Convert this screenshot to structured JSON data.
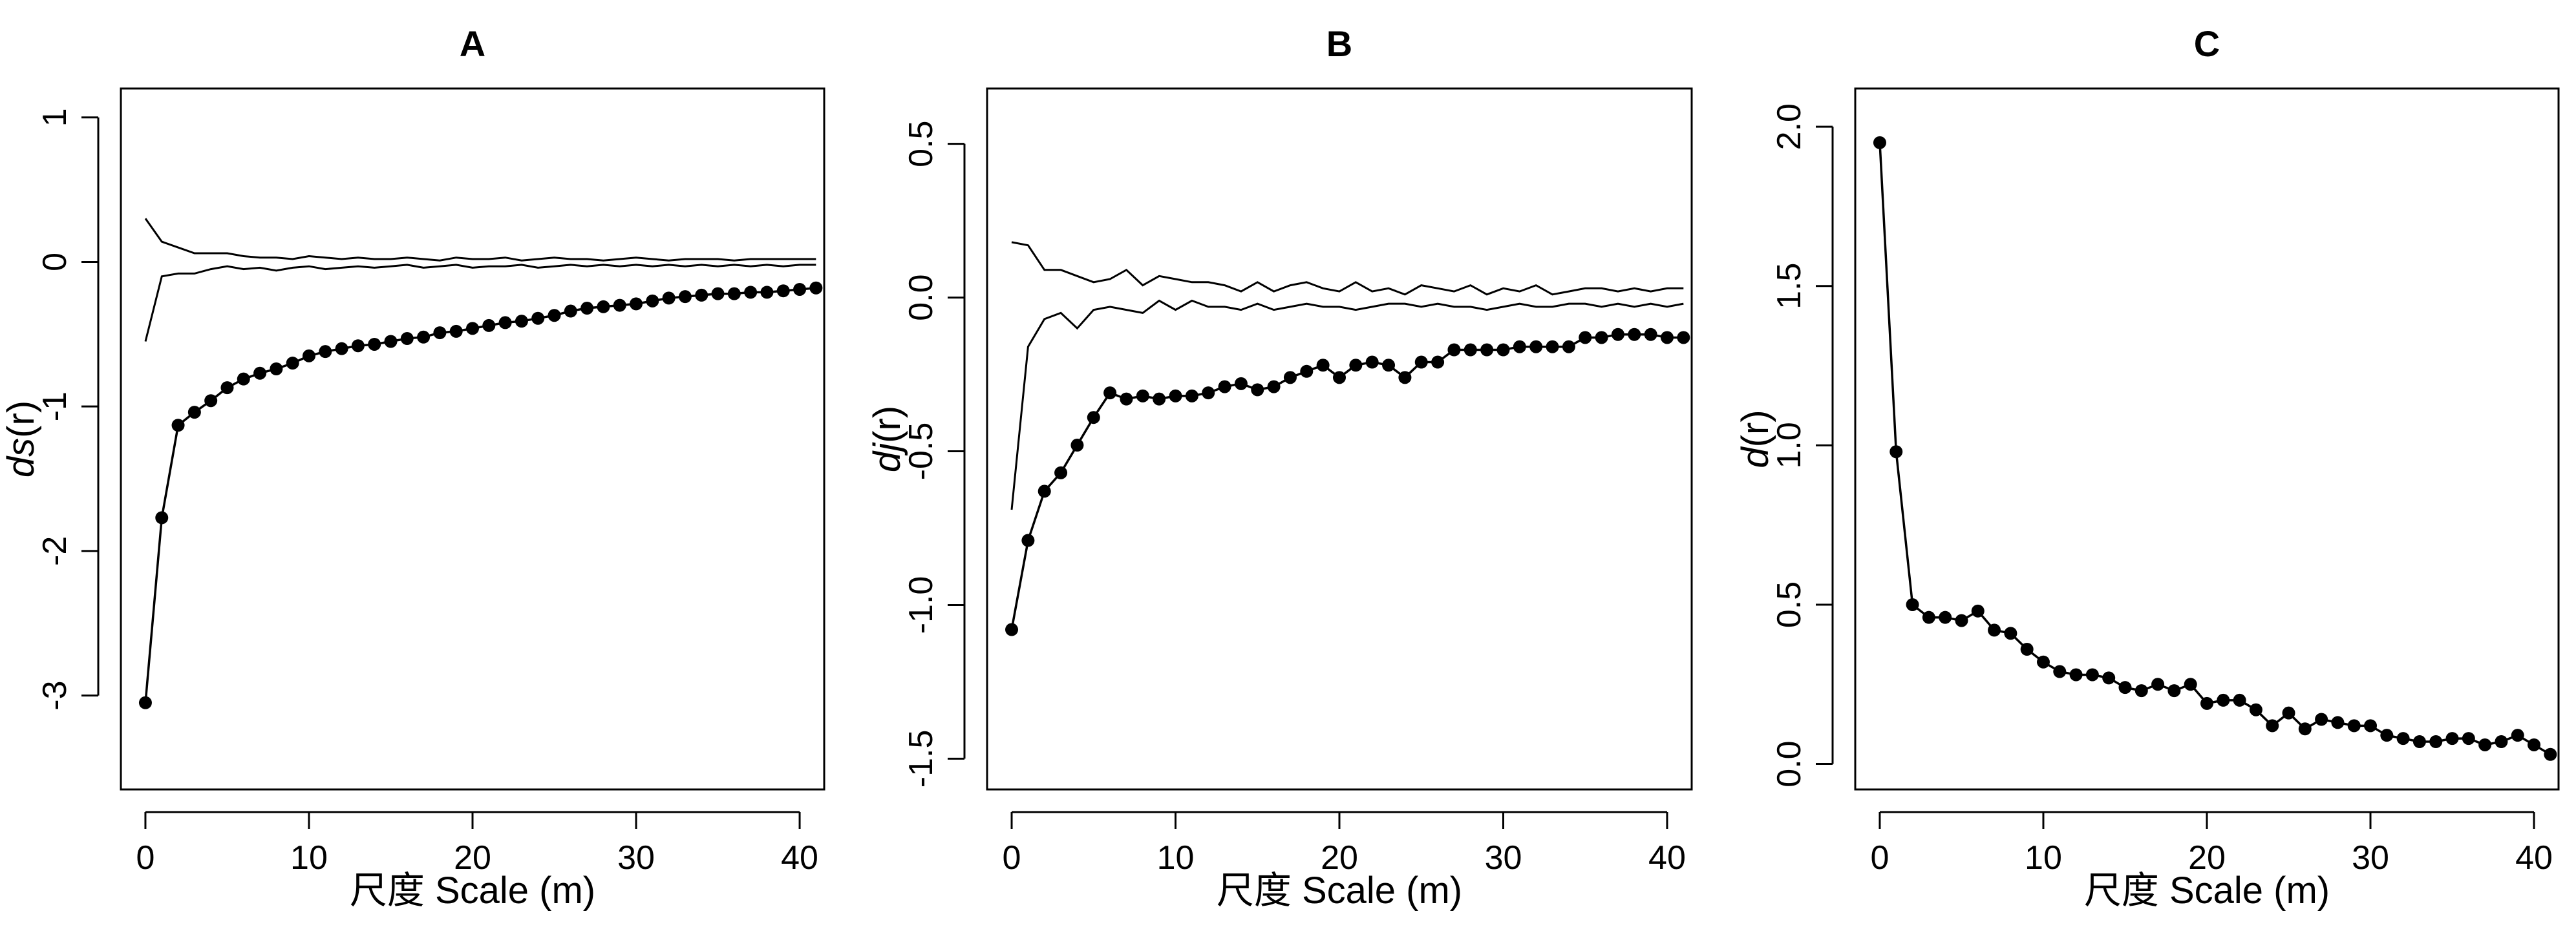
{
  "chart_data": [
    {
      "type": "line",
      "title": "A",
      "xlabel": "尺度 Scale (m)",
      "ylabel_italic": "ds",
      "ylabel_rest": "(r)",
      "xlim": [
        -1.5,
        41.5
      ],
      "ylim": [
        -3.65,
        1.2
      ],
      "xticks": [
        0,
        10,
        20,
        30,
        40
      ],
      "yticks": [
        -3,
        -2,
        -1,
        0,
        1
      ],
      "x": [
        0,
        1,
        2,
        3,
        4,
        5,
        6,
        7,
        8,
        9,
        10,
        11,
        12,
        13,
        14,
        15,
        16,
        17,
        18,
        19,
        20,
        21,
        22,
        23,
        24,
        25,
        26,
        27,
        28,
        29,
        30,
        31,
        32,
        33,
        34,
        35,
        36,
        37,
        38,
        39,
        40,
        41
      ],
      "series": [
        {
          "style": "line-points",
          "values": [
            -3.05,
            -1.77,
            -1.13,
            -1.04,
            -0.96,
            -0.87,
            -0.81,
            -0.77,
            -0.74,
            -0.7,
            -0.65,
            -0.62,
            -0.6,
            -0.58,
            -0.57,
            -0.55,
            -0.53,
            -0.52,
            -0.49,
            -0.48,
            -0.46,
            -0.44,
            -0.42,
            -0.41,
            -0.39,
            -0.37,
            -0.34,
            -0.32,
            -0.31,
            -0.3,
            -0.29,
            -0.27,
            -0.25,
            -0.24,
            -0.23,
            -0.22,
            -0.22,
            -0.21,
            -0.21,
            -0.2,
            -0.19,
            -0.18
          ]
        },
        {
          "style": "line",
          "values": [
            0.3,
            0.14,
            0.1,
            0.06,
            0.06,
            0.06,
            0.04,
            0.03,
            0.03,
            0.02,
            0.04,
            0.03,
            0.02,
            0.03,
            0.02,
            0.02,
            0.03,
            0.02,
            0.01,
            0.03,
            0.02,
            0.02,
            0.03,
            0.01,
            0.02,
            0.03,
            0.02,
            0.02,
            0.01,
            0.02,
            0.03,
            0.02,
            0.01,
            0.02,
            0.02,
            0.02,
            0.01,
            0.02,
            0.02,
            0.02,
            0.02,
            0.02
          ]
        },
        {
          "style": "line",
          "values": [
            -0.55,
            -0.1,
            -0.08,
            -0.08,
            -0.05,
            -0.03,
            -0.05,
            -0.04,
            -0.06,
            -0.04,
            -0.03,
            -0.05,
            -0.04,
            -0.03,
            -0.04,
            -0.03,
            -0.02,
            -0.04,
            -0.03,
            -0.02,
            -0.04,
            -0.03,
            -0.03,
            -0.02,
            -0.04,
            -0.03,
            -0.02,
            -0.03,
            -0.02,
            -0.03,
            -0.02,
            -0.03,
            -0.02,
            -0.03,
            -0.02,
            -0.03,
            -0.02,
            -0.03,
            -0.02,
            -0.03,
            -0.02,
            -0.02
          ]
        }
      ]
    },
    {
      "type": "line",
      "title": "B",
      "xlabel": "尺度 Scale (m)",
      "ylabel_italic": "dj",
      "ylabel_rest": "(r)",
      "xlim": [
        -1.5,
        41.5
      ],
      "ylim": [
        -1.6,
        0.68
      ],
      "xticks": [
        0,
        10,
        20,
        30,
        40
      ],
      "yticks": [
        -1.5,
        -1.0,
        -0.5,
        0.0,
        0.5
      ],
      "ytick_labels": [
        "-1.5",
        "-1.0",
        "-0.5",
        "0.0",
        "0.5"
      ],
      "x": [
        0,
        1,
        2,
        3,
        4,
        5,
        6,
        7,
        8,
        9,
        10,
        11,
        12,
        13,
        14,
        15,
        16,
        17,
        18,
        19,
        20,
        21,
        22,
        23,
        24,
        25,
        26,
        27,
        28,
        29,
        30,
        31,
        32,
        33,
        34,
        35,
        36,
        37,
        38,
        39,
        40,
        41
      ],
      "series": [
        {
          "style": "line-points",
          "values": [
            -1.08,
            -0.79,
            -0.63,
            -0.57,
            -0.48,
            -0.39,
            -0.31,
            -0.33,
            -0.32,
            -0.33,
            -0.32,
            -0.32,
            -0.31,
            -0.29,
            -0.28,
            -0.3,
            -0.29,
            -0.26,
            -0.24,
            -0.22,
            -0.26,
            -0.22,
            -0.21,
            -0.22,
            -0.26,
            -0.21,
            -0.21,
            -0.17,
            -0.17,
            -0.17,
            -0.17,
            -0.16,
            -0.16,
            -0.16,
            -0.16,
            -0.13,
            -0.13,
            -0.12,
            -0.12,
            -0.12,
            -0.13,
            -0.13
          ]
        },
        {
          "style": "line",
          "values": [
            0.18,
            0.17,
            0.09,
            0.09,
            0.07,
            0.05,
            0.06,
            0.09,
            0.04,
            0.07,
            0.06,
            0.05,
            0.05,
            0.04,
            0.02,
            0.05,
            0.02,
            0.04,
            0.05,
            0.03,
            0.02,
            0.05,
            0.02,
            0.03,
            0.01,
            0.04,
            0.03,
            0.02,
            0.04,
            0.01,
            0.03,
            0.02,
            0.04,
            0.01,
            0.02,
            0.03,
            0.03,
            0.02,
            0.03,
            0.02,
            0.03,
            0.03
          ]
        },
        {
          "style": "line",
          "values": [
            -0.69,
            -0.16,
            -0.07,
            -0.05,
            -0.1,
            -0.04,
            -0.03,
            -0.04,
            -0.05,
            -0.01,
            -0.04,
            -0.01,
            -0.03,
            -0.03,
            -0.04,
            -0.02,
            -0.04,
            -0.03,
            -0.02,
            -0.03,
            -0.03,
            -0.04,
            -0.03,
            -0.02,
            -0.02,
            -0.03,
            -0.02,
            -0.03,
            -0.03,
            -0.04,
            -0.03,
            -0.02,
            -0.03,
            -0.03,
            -0.02,
            -0.02,
            -0.03,
            -0.02,
            -0.03,
            -0.02,
            -0.03,
            -0.02
          ]
        }
      ]
    },
    {
      "type": "line",
      "title": "C",
      "xlabel": "尺度 Scale (m)",
      "ylabel_italic": "d",
      "ylabel_rest": "(r)",
      "xlim": [
        -1.5,
        41.5
      ],
      "ylim": [
        -0.08,
        2.12
      ],
      "xticks": [
        0,
        10,
        20,
        30,
        40
      ],
      "yticks": [
        0.0,
        0.5,
        1.0,
        1.5,
        2.0
      ],
      "ytick_labels": [
        "0.0",
        "0.5",
        "1.0",
        "1.5",
        "2.0"
      ],
      "x": [
        0,
        1,
        2,
        3,
        4,
        5,
        6,
        7,
        8,
        9,
        10,
        11,
        12,
        13,
        14,
        15,
        16,
        17,
        18,
        19,
        20,
        21,
        22,
        23,
        24,
        25,
        26,
        27,
        28,
        29,
        30,
        31,
        32,
        33,
        34,
        35,
        36,
        37,
        38,
        39,
        40,
        41
      ],
      "series": [
        {
          "style": "line-points",
          "values": [
            1.95,
            0.98,
            0.5,
            0.46,
            0.46,
            0.45,
            0.48,
            0.42,
            0.41,
            0.36,
            0.32,
            0.29,
            0.28,
            0.28,
            0.27,
            0.24,
            0.23,
            0.25,
            0.23,
            0.25,
            0.19,
            0.2,
            0.2,
            0.17,
            0.12,
            0.16,
            0.11,
            0.14,
            0.13,
            0.12,
            0.12,
            0.09,
            0.08,
            0.07,
            0.07,
            0.08,
            0.08,
            0.06,
            0.07,
            0.09,
            0.06,
            0.03
          ]
        }
      ]
    }
  ]
}
